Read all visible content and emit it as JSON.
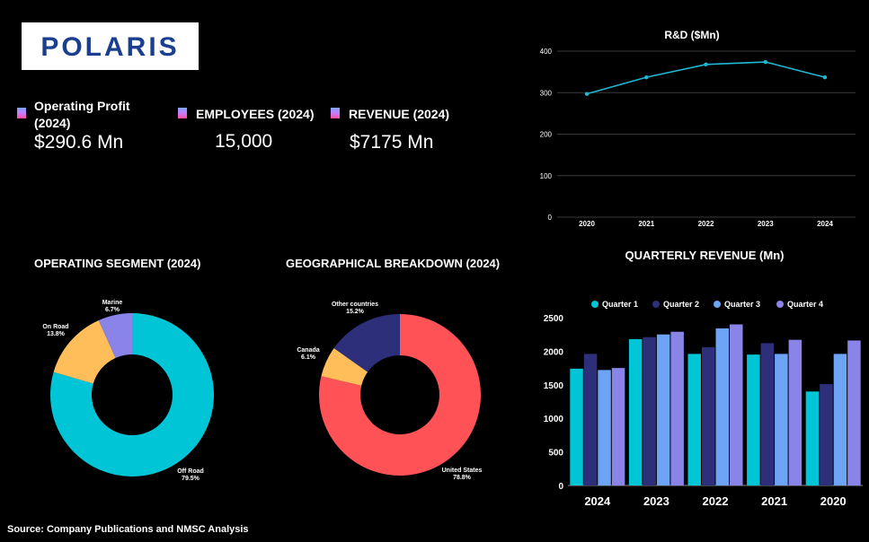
{
  "logo": {
    "text": "POLARIS",
    "color": "#1a3f8f"
  },
  "kpis": [
    {
      "label_line1": "Operating Profit",
      "label_line2": "(2024)",
      "value": "$290.6 Mn"
    },
    {
      "label": "EMPLOYEES (2024)",
      "value": "15,000"
    },
    {
      "label": "REVENUE (2024)",
      "value": "$7175 Mn"
    }
  ],
  "footer": "Source: Company Publications and NMSC Analysis",
  "chart_data": [
    {
      "id": "rnd",
      "type": "line",
      "title": "R&D ($Mn)",
      "x": [
        "2020",
        "2021",
        "2022",
        "2023",
        "2024"
      ],
      "values": [
        297,
        337,
        368,
        374,
        337
      ],
      "yticks": [
        0,
        100,
        200,
        300,
        400
      ],
      "ylim": [
        0,
        400
      ],
      "color": "#1fb8d4",
      "grid": true
    },
    {
      "id": "quarterly",
      "type": "bar",
      "title": "QUARTERLY REVENUE (Mn)",
      "categories": [
        "2024",
        "2023",
        "2022",
        "2021",
        "2020"
      ],
      "series": [
        {
          "name": "Quarter 1",
          "color": "#00c5d6",
          "values": [
            1740,
            2180,
            1960,
            1950,
            1400
          ]
        },
        {
          "name": "Quarter 2",
          "color": "#2e2f7a",
          "values": [
            1960,
            2210,
            2060,
            2120,
            1510
          ]
        },
        {
          "name": "Quarter 3",
          "color": "#6da4f5",
          "values": [
            1720,
            2250,
            2340,
            1960,
            1960
          ]
        },
        {
          "name": "Quarter 4",
          "color": "#8a84e8",
          "values": [
            1750,
            2290,
            2400,
            2170,
            2160
          ]
        }
      ],
      "yticks": [
        0,
        500,
        1000,
        1500,
        2000,
        2500
      ],
      "ylim": [
        0,
        2500
      ],
      "legend": "top"
    },
    {
      "id": "segment",
      "type": "pie",
      "title": "OPERATING SEGMENT (2024)",
      "slices": [
        {
          "label": "Off Road",
          "value": 79.5,
          "display": "79.5%",
          "color": "#00c5d6"
        },
        {
          "label": "On Road",
          "value": 13.8,
          "display": "13.8%",
          "color": "#ffbe5a"
        },
        {
          "label": "Marine",
          "value": 6.7,
          "display": "6.7%",
          "color": "#8a84e8"
        }
      ]
    },
    {
      "id": "geo",
      "type": "pie",
      "title": "GEOGRAPHICAL BREAKDOWN (2024)",
      "slices": [
        {
          "label": "United States",
          "value": 78.8,
          "display": "78.8%",
          "color": "#ff5257"
        },
        {
          "label": "Canada",
          "value": 6.1,
          "display": "6.1%",
          "color": "#ffbe5a"
        },
        {
          "label": "Other countries",
          "value": 15.2,
          "display": "15.2%",
          "color": "#2e2f7a"
        }
      ]
    }
  ]
}
